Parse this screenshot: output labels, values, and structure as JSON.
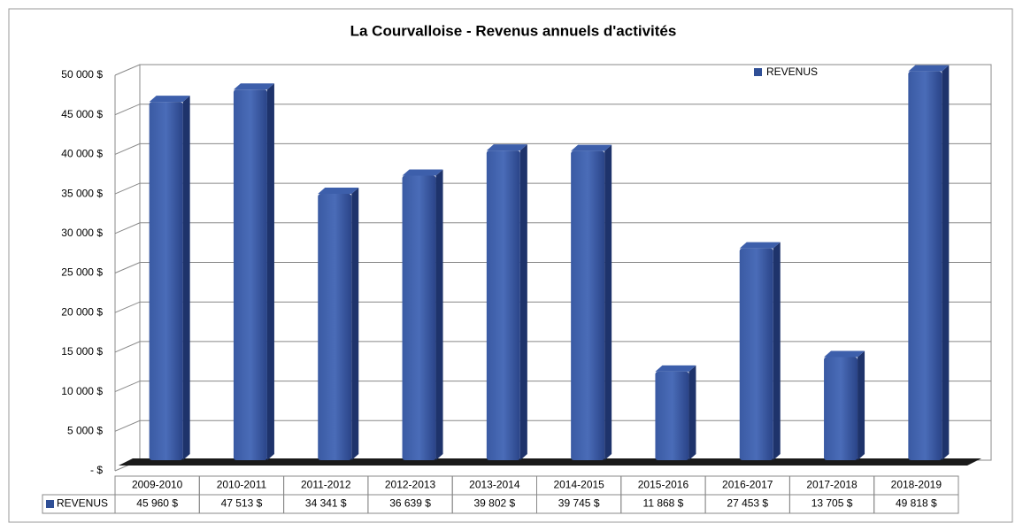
{
  "chart_data": {
    "type": "bar3d",
    "title": "La Courvalloise - Revenus annuels d'activités",
    "categories": [
      "2009-2010",
      "2010-2011",
      "2011-2012",
      "2012-2013",
      "2013-2014",
      "2014-2015",
      "2015-2016",
      "2016-2017",
      "2017-2018",
      "2018-2019"
    ],
    "series": [
      {
        "name": "REVENUS",
        "color": "#2f4f96",
        "values": [
          45960,
          47513,
          34341,
          36639,
          39802,
          39745,
          11868,
          27453,
          13705,
          49818
        ],
        "value_labels": [
          "45 960  $",
          "47 513  $",
          "34 341  $",
          "36 639  $",
          "39 802  $",
          "39 745  $",
          "11 868  $",
          "27 453  $",
          "13 705  $",
          "49 818  $"
        ]
      }
    ],
    "ylim": [
      0,
      50000
    ],
    "yticks": [
      {
        "value": 0,
        "label": "-  $"
      },
      {
        "value": 5000,
        "label": "5 000  $"
      },
      {
        "value": 10000,
        "label": "10 000  $"
      },
      {
        "value": 15000,
        "label": "15 000  $"
      },
      {
        "value": 20000,
        "label": "20 000  $"
      },
      {
        "value": 25000,
        "label": "25 000  $"
      },
      {
        "value": 30000,
        "label": "30 000  $"
      },
      {
        "value": 35000,
        "label": "35 000  $"
      },
      {
        "value": 40000,
        "label": "40 000  $"
      },
      {
        "value": 45000,
        "label": "45 000  $"
      },
      {
        "value": 50000,
        "label": "50 000  $"
      }
    ],
    "grid": true,
    "legend": "top-right"
  }
}
